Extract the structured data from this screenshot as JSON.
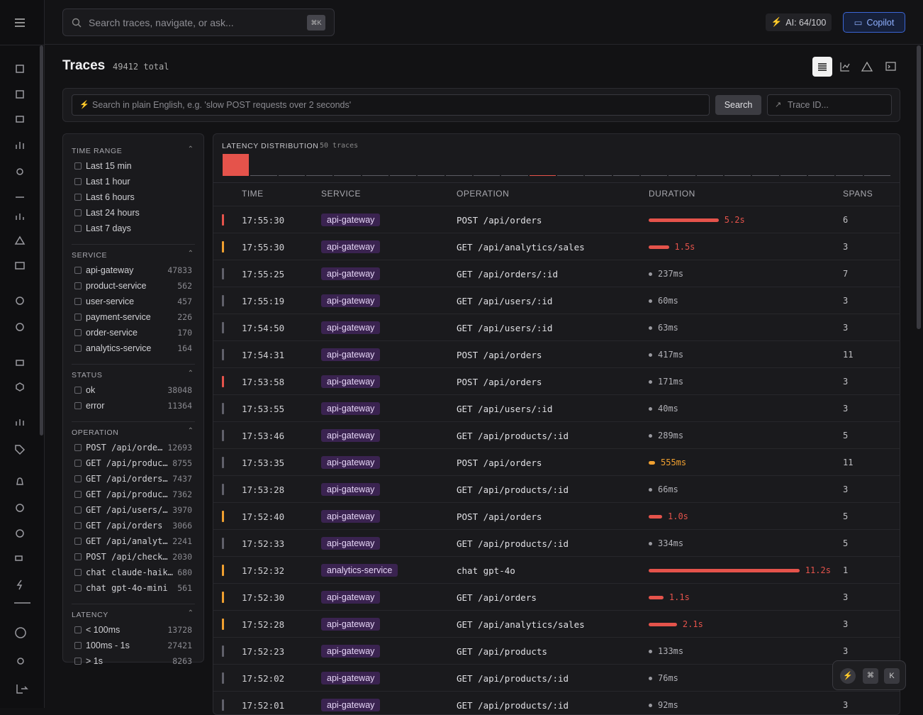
{
  "topbar": {
    "search_placeholder": "Search traces, navigate, or ask...",
    "shortcut": "⌘K",
    "ai_usage": "AI: 64/100",
    "copilot": "Copilot"
  },
  "header": {
    "title": "Traces",
    "total": "49412 total"
  },
  "query": {
    "placeholder": "Search in plain English, e.g. 'slow POST requests over 2 seconds'",
    "button": "Search",
    "trace_id_placeholder": "Trace ID..."
  },
  "filters": [
    {
      "title": "TIME RANGE",
      "items": [
        {
          "label": "Last 15 min"
        },
        {
          "label": "Last 1 hour"
        },
        {
          "label": "Last 6 hours"
        },
        {
          "label": "Last 24 hours"
        },
        {
          "label": "Last 7 days"
        }
      ]
    },
    {
      "title": "SERVICE",
      "items": [
        {
          "label": "api-gateway",
          "count": 47833
        },
        {
          "label": "product-service",
          "count": 562
        },
        {
          "label": "user-service",
          "count": 457
        },
        {
          "label": "payment-service",
          "count": 226
        },
        {
          "label": "order-service",
          "count": 170
        },
        {
          "label": "analytics-service",
          "count": 164
        }
      ]
    },
    {
      "title": "STATUS",
      "items": [
        {
          "label": "ok",
          "count": 38048
        },
        {
          "label": "error",
          "count": 11364
        }
      ]
    },
    {
      "title": "OPERATION",
      "mono": true,
      "items": [
        {
          "label": "POST /api/orde…",
          "count": 12693
        },
        {
          "label": "GET /api/produc…",
          "count": 8755
        },
        {
          "label": "GET /api/orders…",
          "count": 7437
        },
        {
          "label": "GET /api/produc…",
          "count": 7362
        },
        {
          "label": "GET /api/users/…",
          "count": 3970
        },
        {
          "label": "GET /api/orders",
          "count": 3066
        },
        {
          "label": "GET /api/analyt…",
          "count": 2241
        },
        {
          "label": "POST /api/check…",
          "count": 2030
        },
        {
          "label": "chat claude-haik…",
          "count": 680
        },
        {
          "label": "chat gpt-4o-mini",
          "count": 561
        }
      ]
    },
    {
      "title": "LATENCY",
      "items": [
        {
          "label": "< 100ms",
          "count": 13728
        },
        {
          "label": "100ms - 1s",
          "count": 27421
        },
        {
          "label": "> 1s",
          "count": 8263
        }
      ]
    }
  ],
  "latency_distribution": {
    "title": "LATENCY DISTRIBUTION",
    "subtitle": "50 traces",
    "counts": [
      45,
      2,
      1,
      0,
      1,
      0,
      0,
      0,
      0,
      0,
      0,
      1,
      0,
      0,
      0,
      0,
      0,
      0,
      0,
      0,
      0,
      0,
      0,
      0
    ],
    "colors": [
      "#e5534b",
      "#5c5c63",
      "#5c5c63",
      "#5c5c63",
      "#5c5c63",
      "#5c5c63",
      "#5c5c63",
      "#5c5c63",
      "#5c5c63",
      "#5c5c63",
      "#5c5c63",
      "#e5534b",
      "#5c5c63",
      "#5c5c63",
      "#5c5c63",
      "#5c5c63",
      "#5c5c63",
      "#5c5c63",
      "#5c5c63",
      "#5c5c63",
      "#5c5c63",
      "#5c5c63",
      "#5c5c63",
      "#5c5c63"
    ]
  },
  "table": {
    "columns": [
      "TIME",
      "SERVICE",
      "OPERATION",
      "DURATION",
      "SPANS"
    ],
    "rows": [
      {
        "status_color": "#e5534b",
        "time": "17:55:30",
        "service": "api-gateway",
        "operation": "POST /api/orders",
        "duration": {
          "value": 5200,
          "label": "5.2s"
        },
        "spans": 6
      },
      {
        "status_color": "#f0a030",
        "time": "17:55:30",
        "service": "api-gateway",
        "operation": "GET /api/analytics/sales",
        "duration": {
          "value": 1500,
          "label": "1.5s"
        },
        "spans": 3
      },
      {
        "status_color": "#60606a",
        "time": "17:55:25",
        "service": "api-gateway",
        "operation": "GET /api/orders/:id",
        "duration": {
          "value": 237,
          "label": "237ms"
        },
        "spans": 7
      },
      {
        "status_color": "#60606a",
        "time": "17:55:19",
        "service": "api-gateway",
        "operation": "GET /api/users/:id",
        "duration": {
          "value": 60,
          "label": "60ms"
        },
        "spans": 3
      },
      {
        "status_color": "#60606a",
        "time": "17:54:50",
        "service": "api-gateway",
        "operation": "GET /api/users/:id",
        "duration": {
          "value": 63,
          "label": "63ms"
        },
        "spans": 3
      },
      {
        "status_color": "#60606a",
        "time": "17:54:31",
        "service": "api-gateway",
        "operation": "POST /api/orders",
        "duration": {
          "value": 417,
          "label": "417ms"
        },
        "spans": 11
      },
      {
        "status_color": "#e5534b",
        "time": "17:53:58",
        "service": "api-gateway",
        "operation": "POST /api/orders",
        "duration": {
          "value": 171,
          "label": "171ms"
        },
        "spans": 3
      },
      {
        "status_color": "#60606a",
        "time": "17:53:55",
        "service": "api-gateway",
        "operation": "GET /api/users/:id",
        "duration": {
          "value": 40,
          "label": "40ms"
        },
        "spans": 3
      },
      {
        "status_color": "#60606a",
        "time": "17:53:46",
        "service": "api-gateway",
        "operation": "GET /api/products/:id",
        "duration": {
          "value": 289,
          "label": "289ms"
        },
        "spans": 5
      },
      {
        "status_color": "#60606a",
        "time": "17:53:35",
        "service": "api-gateway",
        "operation": "POST /api/orders",
        "duration": {
          "value": 555,
          "label": "555ms"
        },
        "spans": 11
      },
      {
        "status_color": "#60606a",
        "time": "17:53:28",
        "service": "api-gateway",
        "operation": "GET /api/products/:id",
        "duration": {
          "value": 66,
          "label": "66ms"
        },
        "spans": 3
      },
      {
        "status_color": "#f0a030",
        "time": "17:52:40",
        "service": "api-gateway",
        "operation": "POST /api/orders",
        "duration": {
          "value": 1000,
          "label": "1.0s"
        },
        "spans": 5
      },
      {
        "status_color": "#60606a",
        "time": "17:52:33",
        "service": "api-gateway",
        "operation": "GET /api/products/:id",
        "duration": {
          "value": 334,
          "label": "334ms"
        },
        "spans": 5
      },
      {
        "status_color": "#f0a030",
        "time": "17:52:32",
        "service": "analytics-service",
        "operation": "chat gpt-4o",
        "duration": {
          "value": 11200,
          "label": "11.2s"
        },
        "spans": 1
      },
      {
        "status_color": "#f0a030",
        "time": "17:52:30",
        "service": "api-gateway",
        "operation": "GET /api/orders",
        "duration": {
          "value": 1100,
          "label": "1.1s"
        },
        "spans": 3
      },
      {
        "status_color": "#f0a030",
        "time": "17:52:28",
        "service": "api-gateway",
        "operation": "GET /api/analytics/sales",
        "duration": {
          "value": 2100,
          "label": "2.1s"
        },
        "spans": 3
      },
      {
        "status_color": "#60606a",
        "time": "17:52:23",
        "service": "api-gateway",
        "operation": "GET /api/products",
        "duration": {
          "value": 133,
          "label": "133ms"
        },
        "spans": 3
      },
      {
        "status_color": "#60606a",
        "time": "17:52:02",
        "service": "api-gateway",
        "operation": "GET /api/products/:id",
        "duration": {
          "value": 76,
          "label": "76ms"
        },
        "spans": 3
      },
      {
        "status_color": "#60606a",
        "time": "17:52:01",
        "service": "api-gateway",
        "operation": "GET /api/products/:id",
        "duration": {
          "value": 92,
          "label": "92ms"
        },
        "spans": 3
      }
    ]
  },
  "widget": {
    "cmd": "⌘",
    "key": "K"
  }
}
